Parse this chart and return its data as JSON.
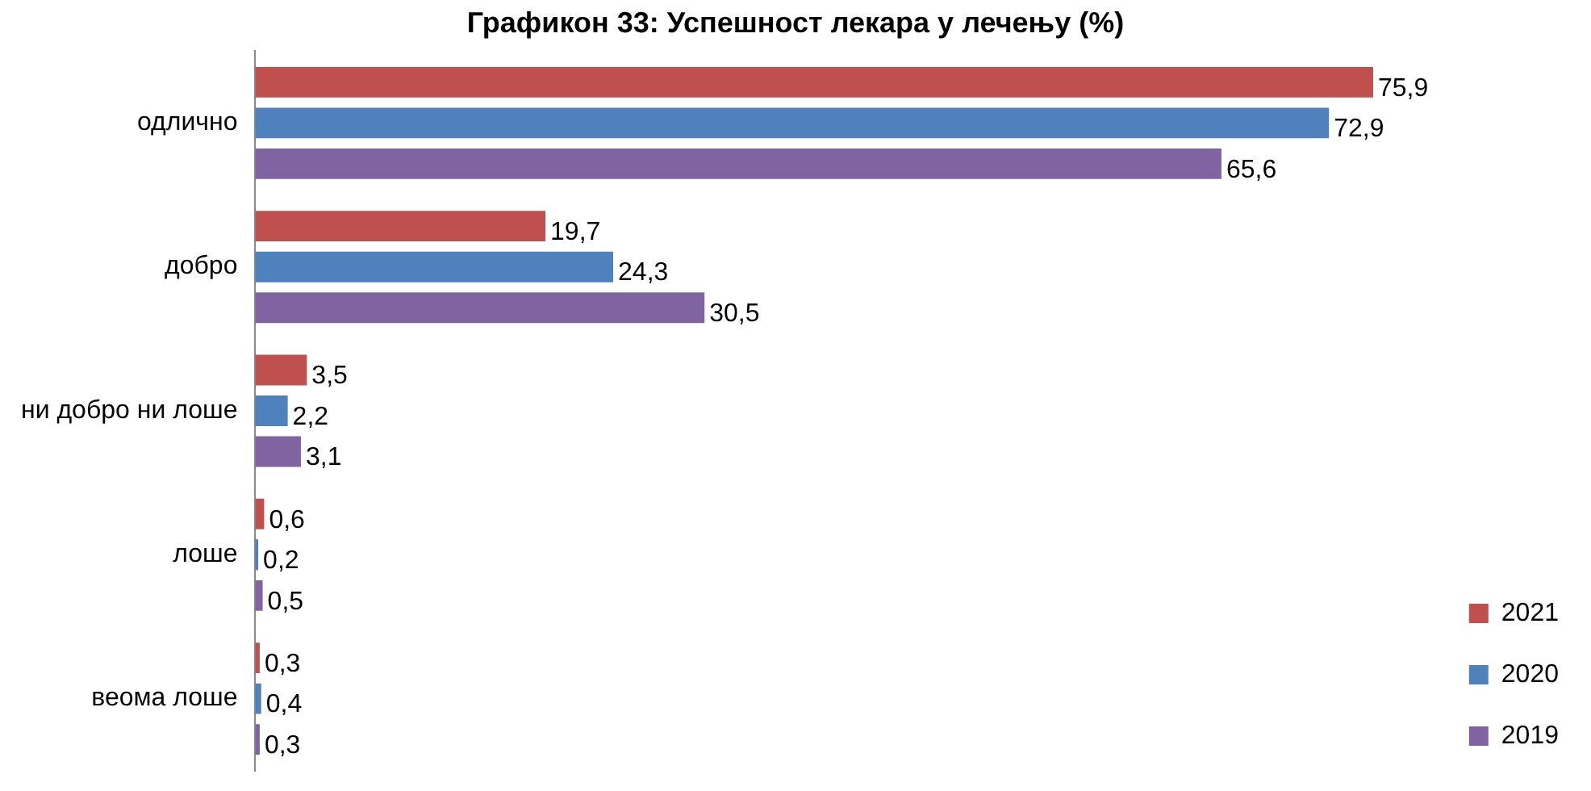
{
  "chart_data": {
    "type": "bar",
    "orientation": "horizontal",
    "title": "Графикон 33: Успешност лекара у лечењу (%)",
    "categories": [
      "одлично",
      "добро",
      "ни добро ни лоше",
      "лоше",
      "веома лоше"
    ],
    "series": [
      {
        "name": "2021",
        "color": "#c0504d",
        "values": [
          75.9,
          19.7,
          3.5,
          0.6,
          0.3
        ],
        "value_labels": [
          "75,9",
          "19,7",
          "3,5",
          "0,6",
          "0,3"
        ]
      },
      {
        "name": "2020",
        "color": "#4f81bd",
        "values": [
          72.9,
          24.3,
          2.2,
          0.2,
          0.4
        ],
        "value_labels": [
          "72,9",
          "24,3",
          "2,2",
          "0,2",
          "0,4"
        ]
      },
      {
        "name": "2019",
        "color": "#8064a2",
        "values": [
          65.6,
          30.5,
          3.1,
          0.5,
          0.3
        ],
        "value_labels": [
          "65,6",
          "30,5",
          "3,1",
          "0,5",
          "0,3"
        ]
      }
    ],
    "tick_labels": "y",
    "legend": "bottom right"
  }
}
